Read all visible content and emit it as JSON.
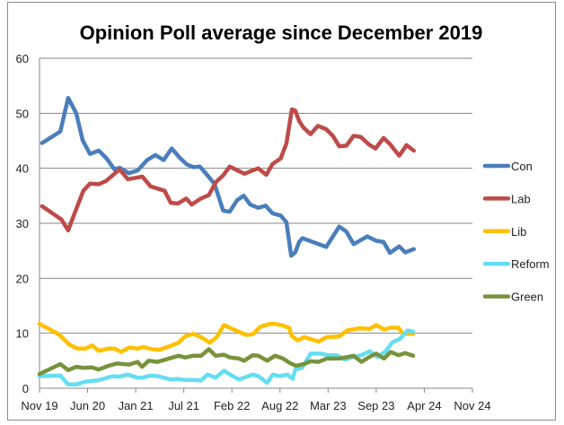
{
  "chart_data": {
    "type": "line",
    "title": "Opinion Poll average since December 2019",
    "xlabel": "",
    "ylabel": "",
    "xlim": [
      "2019-11-01",
      "2024-11-01"
    ],
    "ylim": [
      0,
      60
    ],
    "y_ticks": [
      0,
      10,
      20,
      30,
      40,
      50,
      60
    ],
    "x_tick_labels": [
      "Nov 19",
      "Jun 20",
      "Jan 21",
      "Jul 21",
      "Feb 22",
      "Aug 22",
      "Mar 23",
      "Sep 23",
      "Apr 24",
      "Nov 24"
    ],
    "grid": "horizontal",
    "legend_position": "right",
    "series": [
      {
        "name": "Con",
        "color": "#4a7ebb",
        "points": [
          [
            "2019-11-12",
            44.6
          ],
          [
            "2020-01-28",
            46.7
          ],
          [
            "2020-03-01",
            52.8
          ],
          [
            "2020-04-04",
            50
          ],
          [
            "2020-05-01",
            45.1
          ],
          [
            "2020-06-01",
            42.6
          ],
          [
            "2020-07-08",
            43.2
          ],
          [
            "2020-08-08",
            41.9
          ],
          [
            "2020-09-12",
            39.8
          ],
          [
            "2020-10-04",
            40.1
          ],
          [
            "2020-11-12",
            39.1
          ],
          [
            "2020-12-19",
            39.6
          ],
          [
            "2021-01-28",
            41.5
          ],
          [
            "2021-03-04",
            42.4
          ],
          [
            "2021-04-08",
            41.5
          ],
          [
            "2021-05-12",
            43.6
          ],
          [
            "2021-06-15",
            41.9
          ],
          [
            "2021-07-15",
            40.7
          ],
          [
            "2021-08-12",
            40.2
          ],
          [
            "2021-09-08",
            40.3
          ],
          [
            "2021-10-08",
            38.8
          ],
          [
            "2021-11-08",
            37.2
          ],
          [
            "2021-12-15",
            32.3
          ],
          [
            "2022-01-12",
            32.1
          ],
          [
            "2022-02-12",
            34.2
          ],
          [
            "2022-03-12",
            35
          ],
          [
            "2022-04-08",
            33.4
          ],
          [
            "2022-05-12",
            32.8
          ],
          [
            "2022-06-12",
            33.2
          ],
          [
            "2022-07-12",
            31.8
          ],
          [
            "2022-08-15",
            31.4
          ],
          [
            "2022-09-08",
            30.2
          ],
          [
            "2022-09-28",
            24.1
          ],
          [
            "2022-10-15",
            24.7
          ],
          [
            "2022-11-01",
            26.6
          ],
          [
            "2022-11-15",
            27.3
          ],
          [
            "2023-02-23",
            25.7
          ],
          [
            "2023-04-19",
            29.4
          ],
          [
            "2023-05-19",
            28.5
          ],
          [
            "2023-06-19",
            26.2
          ],
          [
            "2023-08-15",
            27.6
          ],
          [
            "2023-09-23",
            26.8
          ],
          [
            "2023-10-23",
            26.6
          ],
          [
            "2023-11-19",
            24.6
          ],
          [
            "2023-12-28",
            25.8
          ],
          [
            "2024-01-23",
            24.7
          ],
          [
            "2024-02-28",
            25.3
          ]
        ]
      },
      {
        "name": "Lab",
        "color": "#be4b48",
        "points": [
          [
            "2019-11-12",
            33.1
          ],
          [
            "2020-02-01",
            30.7
          ],
          [
            "2020-03-01",
            28.7
          ],
          [
            "2020-03-28",
            31.8
          ],
          [
            "2020-05-04",
            35.9
          ],
          [
            "2020-06-01",
            37.2
          ],
          [
            "2020-07-08",
            37.1
          ],
          [
            "2020-08-08",
            37.7
          ],
          [
            "2020-10-04",
            39.8
          ],
          [
            "2020-11-08",
            38
          ],
          [
            "2021-01-08",
            38.5
          ],
          [
            "2021-02-12",
            36.7
          ],
          [
            "2021-04-12",
            35.9
          ],
          [
            "2021-05-08",
            33.7
          ],
          [
            "2021-06-08",
            33.6
          ],
          [
            "2021-07-12",
            34.5
          ],
          [
            "2021-08-04",
            33.4
          ],
          [
            "2021-09-12",
            34.5
          ],
          [
            "2021-10-15",
            35.1
          ],
          [
            "2021-11-15",
            37.5
          ],
          [
            "2021-12-15",
            38.7
          ],
          [
            "2022-01-12",
            40.3
          ],
          [
            "2022-03-15",
            39
          ],
          [
            "2022-05-12",
            40
          ],
          [
            "2022-06-15",
            38.8
          ],
          [
            "2022-07-12",
            40.8
          ],
          [
            "2022-08-15",
            41.8
          ],
          [
            "2022-09-08",
            44.5
          ],
          [
            "2022-10-01",
            50.7
          ],
          [
            "2022-10-15",
            50.5
          ],
          [
            "2022-11-01",
            48.6
          ],
          [
            "2022-11-19",
            47.4
          ],
          [
            "2022-12-19",
            46.2
          ],
          [
            "2023-01-19",
            47.7
          ],
          [
            "2023-02-23",
            47.1
          ],
          [
            "2023-03-23",
            45.9
          ],
          [
            "2023-04-19",
            44
          ],
          [
            "2023-05-19",
            44.1
          ],
          [
            "2023-06-19",
            45.9
          ],
          [
            "2023-07-19",
            45.7
          ],
          [
            "2023-08-23",
            44.3
          ],
          [
            "2023-09-19",
            43.6
          ],
          [
            "2023-10-23",
            45.5
          ],
          [
            "2023-11-19",
            44.4
          ],
          [
            "2023-12-28",
            42.3
          ],
          [
            "2024-01-28",
            44.2
          ],
          [
            "2024-02-28",
            43.2
          ]
        ]
      },
      {
        "name": "Lib",
        "color": "#ffc000",
        "points": [
          [
            "2019-11-01",
            11.7
          ],
          [
            "2020-01-22",
            9.8
          ],
          [
            "2020-03-07",
            7.9
          ],
          [
            "2020-04-10",
            7.2
          ],
          [
            "2020-05-13",
            7.2
          ],
          [
            "2020-06-10",
            7.8
          ],
          [
            "2020-07-07",
            6.8
          ],
          [
            "2020-08-19",
            7.2
          ],
          [
            "2020-09-13",
            7.2
          ],
          [
            "2020-10-10",
            6.6
          ],
          [
            "2020-11-13",
            7.4
          ],
          [
            "2020-12-19",
            7.2
          ],
          [
            "2021-01-13",
            7.5
          ],
          [
            "2021-02-18",
            7.1
          ],
          [
            "2021-03-22",
            7
          ],
          [
            "2021-05-07",
            7.7
          ],
          [
            "2021-06-10",
            8.3
          ],
          [
            "2021-07-07",
            9.4
          ],
          [
            "2021-08-10",
            9.9
          ],
          [
            "2021-09-13",
            9.3
          ],
          [
            "2021-10-19",
            8.3
          ],
          [
            "2021-11-16",
            9.2
          ],
          [
            "2021-12-19",
            11.5
          ],
          [
            "2022-01-22",
            10.8
          ],
          [
            "2022-03-22",
            9.7
          ],
          [
            "2022-04-19",
            9.8
          ],
          [
            "2022-05-22",
            11.2
          ],
          [
            "2022-07-01",
            11.7
          ],
          [
            "2022-07-22",
            11.7
          ],
          [
            "2022-08-25",
            11.4
          ],
          [
            "2022-09-22",
            10.9
          ],
          [
            "2022-09-28",
            9.6
          ],
          [
            "2022-10-25",
            8.7
          ],
          [
            "2022-11-22",
            9.3
          ],
          [
            "2023-01-22",
            8.5
          ],
          [
            "2023-02-25",
            9.3
          ],
          [
            "2023-04-19",
            9.4
          ],
          [
            "2023-05-22",
            10.5
          ],
          [
            "2023-07-13",
            10.9
          ],
          [
            "2023-08-25",
            10.8
          ],
          [
            "2023-09-22",
            11.5
          ],
          [
            "2023-10-25",
            10.7
          ],
          [
            "2023-11-22",
            11
          ],
          [
            "2023-12-25",
            11
          ],
          [
            "2024-01-13",
            9.9
          ],
          [
            "2024-02-25",
            9.9
          ]
        ]
      },
      {
        "name": "Reform",
        "color": "#66ddf2",
        "points": [
          [
            "2019-11-01",
            2.2
          ],
          [
            "2020-01-28",
            2.3
          ],
          [
            "2020-03-01",
            0.7
          ],
          [
            "2020-04-04",
            0.7
          ],
          [
            "2020-05-13",
            1.2
          ],
          [
            "2020-07-01",
            1.4
          ],
          [
            "2020-09-07",
            2.2
          ],
          [
            "2020-10-04",
            2.1
          ],
          [
            "2020-11-07",
            2.5
          ],
          [
            "2020-12-19",
            1.9
          ],
          [
            "2021-01-07",
            1.9
          ],
          [
            "2021-02-10",
            2.3
          ],
          [
            "2021-03-13",
            2.2
          ],
          [
            "2021-05-07",
            1.6
          ],
          [
            "2021-06-04",
            1.7
          ],
          [
            "2021-07-07",
            1.5
          ],
          [
            "2021-08-10",
            1.5
          ],
          [
            "2021-09-13",
            1.4
          ],
          [
            "2021-10-10",
            2.5
          ],
          [
            "2021-11-13",
            1.9
          ],
          [
            "2021-12-19",
            3.2
          ],
          [
            "2022-01-13",
            2.5
          ],
          [
            "2022-02-19",
            1.6
          ],
          [
            "2022-03-13",
            1.9
          ],
          [
            "2022-04-19",
            2.5
          ],
          [
            "2022-05-13",
            2.2
          ],
          [
            "2022-06-19",
            1.0
          ],
          [
            "2022-07-13",
            2.5
          ],
          [
            "2022-08-10",
            2.2
          ],
          [
            "2022-09-13",
            2.5
          ],
          [
            "2022-10-04",
            1.7
          ],
          [
            "2022-10-16",
            3.4
          ],
          [
            "2022-11-13",
            3.7
          ],
          [
            "2022-12-19",
            6.3
          ],
          [
            "2023-02-04",
            6.3
          ],
          [
            "2023-03-01",
            6.0
          ],
          [
            "2023-04-10",
            6.0
          ],
          [
            "2023-05-13",
            5.2
          ],
          [
            "2023-06-19",
            5.7
          ],
          [
            "2023-07-22",
            6.0
          ],
          [
            "2023-08-25",
            6.7
          ],
          [
            "2023-09-28",
            5.7
          ],
          [
            "2023-11-01",
            6.7
          ],
          [
            "2023-11-28",
            8.3
          ],
          [
            "2024-01-01",
            9.0
          ],
          [
            "2024-02-01",
            10.5
          ],
          [
            "2024-02-25",
            10.3
          ]
        ]
      },
      {
        "name": "Green",
        "color": "#77933c",
        "points": [
          [
            "2019-11-01",
            2.6
          ],
          [
            "2020-01-28",
            4.4
          ],
          [
            "2020-03-01",
            3.3
          ],
          [
            "2020-04-04",
            3.9
          ],
          [
            "2020-05-07",
            3.7
          ],
          [
            "2020-06-10",
            3.8
          ],
          [
            "2020-07-07",
            3.4
          ],
          [
            "2020-08-19",
            4.1
          ],
          [
            "2020-09-22",
            4.5
          ],
          [
            "2020-11-13",
            4.3
          ],
          [
            "2020-12-19",
            4.8
          ],
          [
            "2021-01-07",
            3.9
          ],
          [
            "2021-02-04",
            5.0
          ],
          [
            "2021-03-13",
            4.8
          ],
          [
            "2021-05-07",
            5.5
          ],
          [
            "2021-06-10",
            5.9
          ],
          [
            "2021-07-07",
            5.6
          ],
          [
            "2021-08-10",
            5.9
          ],
          [
            "2021-09-13",
            5.9
          ],
          [
            "2021-10-16",
            7.1
          ],
          [
            "2021-11-13",
            5.9
          ],
          [
            "2021-12-19",
            6.1
          ],
          [
            "2022-01-13",
            5.6
          ],
          [
            "2022-02-19",
            5.4
          ],
          [
            "2022-03-13",
            5.0
          ],
          [
            "2022-04-19",
            6.0
          ],
          [
            "2022-05-13",
            5.9
          ],
          [
            "2022-06-19",
            5.0
          ],
          [
            "2022-07-22",
            5.9
          ],
          [
            "2022-08-25",
            5.4
          ],
          [
            "2022-09-22",
            4.6
          ],
          [
            "2022-10-19",
            4.1
          ],
          [
            "2022-11-22",
            4.4
          ],
          [
            "2022-12-19",
            4.9
          ],
          [
            "2023-01-22",
            4.8
          ],
          [
            "2023-02-25",
            5.4
          ],
          [
            "2023-04-19",
            5.4
          ],
          [
            "2023-05-13",
            5.6
          ],
          [
            "2023-06-19",
            5.9
          ],
          [
            "2023-07-22",
            4.8
          ],
          [
            "2023-08-25",
            5.7
          ],
          [
            "2023-09-22",
            6.3
          ],
          [
            "2023-10-25",
            5.4
          ],
          [
            "2023-11-22",
            6.6
          ],
          [
            "2023-12-25",
            6.0
          ],
          [
            "2024-01-22",
            6.4
          ],
          [
            "2024-02-25",
            5.9
          ]
        ]
      }
    ]
  }
}
